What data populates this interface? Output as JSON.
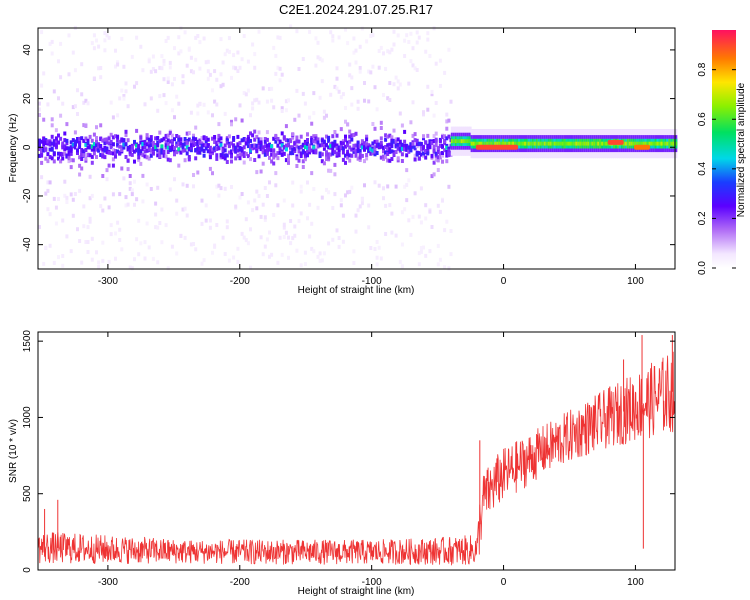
{
  "page_title": "C2E1.2024.291.07.25.R17",
  "chart_data": [
    {
      "type": "heatmap",
      "title": "C2E1.2024.291.07.25.R17",
      "xlabel": "Height of straight line (km)",
      "ylabel": "Frequency (Hz)",
      "xlim": [
        -353,
        130
      ],
      "ylim": [
        -50,
        49
      ],
      "x_ticks": [
        -300,
        -200,
        -100,
        0,
        100
      ],
      "x_tick_labels": [
        "-300",
        "-200",
        "-100",
        "0",
        "100"
      ],
      "y_ticks": [
        -40,
        -20,
        0,
        20,
        40
      ],
      "y_tick_labels": [
        "-40",
        "-20",
        "0",
        "20",
        "40"
      ],
      "colorbar": {
        "label": "Normalized spectral amplitude",
        "range": [
          0,
          0.96
        ],
        "ticks": [
          0.0,
          0.2,
          0.4,
          0.6,
          0.8
        ],
        "tick_labels": [
          "0.0",
          "0.2",
          "0.4",
          "0.6",
          "0.8"
        ]
      },
      "regions": [
        {
          "x_range": [
            -353,
            -40
          ],
          "pattern": "broadband noise",
          "core_band_hz": [
            -10,
            10
          ],
          "scatter_band_hz": [
            -50,
            49
          ],
          "amplitude": "0.05-0.3"
        },
        {
          "x_range": [
            -40,
            130
          ],
          "pattern": "narrow tone",
          "center_hz": 1.5,
          "half_width_hz": 3,
          "amplitude": "0.4-0.9"
        }
      ],
      "hotspots": [
        {
          "x": -15,
          "y": 0,
          "value": 0.9
        },
        {
          "x": -5,
          "y": 0,
          "value": 0.9
        },
        {
          "x": 5,
          "y": 0,
          "value": 0.9
        },
        {
          "x": 85,
          "y": 2,
          "value": 0.9
        },
        {
          "x": 105,
          "y": 0,
          "value": 0.85
        }
      ]
    },
    {
      "type": "line",
      "xlabel": "Height of straight line (km)",
      "ylabel": "SNR (10 * v/v)",
      "xlim": [
        -353,
        130
      ],
      "ylim": [
        0,
        1560
      ],
      "x_ticks": [
        -300,
        -200,
        -100,
        0,
        100
      ],
      "x_tick_labels": [
        "-300",
        "-200",
        "-100",
        "0",
        "100"
      ],
      "y_ticks": [
        0,
        500,
        1000,
        1500
      ],
      "y_tick_labels": [
        "0",
        "500",
        "1000",
        "1500"
      ],
      "color": "#ee3333",
      "series": [
        {
          "name": "SNR",
          "x": [
            -353,
            -340,
            -320,
            -300,
            -280,
            -260,
            -240,
            -220,
            -200,
            -180,
            -160,
            -140,
            -120,
            -100,
            -80,
            -60,
            -40,
            -25,
            -20,
            -18,
            -15,
            -10,
            -5,
            0,
            10,
            20,
            30,
            40,
            50,
            60,
            70,
            80,
            90,
            100,
            110,
            120,
            130
          ],
          "y_low": [
            40,
            40,
            40,
            40,
            40,
            40,
            40,
            40,
            35,
            35,
            35,
            35,
            35,
            35,
            35,
            35,
            30,
            30,
            30,
            100,
            300,
            350,
            400,
            450,
            500,
            560,
            620,
            660,
            700,
            740,
            760,
            800,
            820,
            840,
            860,
            880,
            900
          ],
          "y_high": [
            250,
            250,
            240,
            230,
            220,
            210,
            200,
            200,
            200,
            200,
            200,
            200,
            200,
            200,
            205,
            210,
            220,
            230,
            240,
            500,
            650,
            700,
            760,
            800,
            850,
            900,
            950,
            1000,
            1050,
            1100,
            1150,
            1200,
            1250,
            1300,
            1350,
            1400,
            1450
          ]
        }
      ],
      "spikes": [
        {
          "x": -348,
          "y": 400
        },
        {
          "x": -338,
          "y": 460
        },
        {
          "x": -18,
          "y": 850
        },
        {
          "x": 91,
          "y": 1380
        },
        {
          "x": 105,
          "y": 1540
        },
        {
          "x": 106,
          "y": 140
        },
        {
          "x": 128,
          "y": 1540
        }
      ]
    }
  ]
}
